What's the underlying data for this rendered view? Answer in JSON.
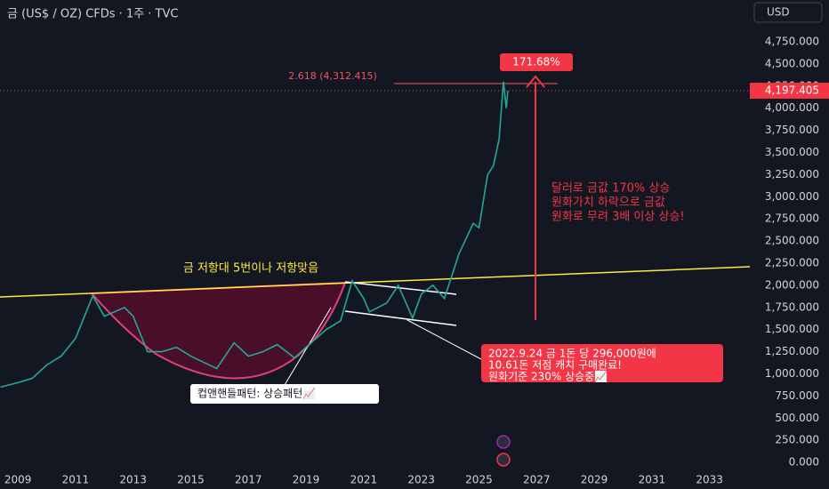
{
  "chart_data": {
    "type": "line",
    "title": "금 (US$ / OZ) CFDs · 1주 · TVC",
    "currency": "USD",
    "x": [
      2008.4,
      2009,
      2009.5,
      2010,
      2010.5,
      2011,
      2011.6,
      2012,
      2012.7,
      2013,
      2013.5,
      2014,
      2014.5,
      2015,
      2015.9,
      2016.5,
      2017,
      2017.5,
      2018,
      2018.6,
      2019,
      2019.7,
      2020.2,
      2020.6,
      2021,
      2021.2,
      2021.8,
      2022.2,
      2022.7,
      2023,
      2023.4,
      2023.8,
      2024,
      2024.3,
      2024.8,
      2025,
      2025.3,
      2025.5,
      2025.7,
      2025.85,
      2025.95,
      2026.0
    ],
    "values": [
      850,
      900,
      950,
      1100,
      1200,
      1400,
      1880,
      1650,
      1750,
      1650,
      1250,
      1250,
      1300,
      1200,
      1060,
      1350,
      1200,
      1250,
      1330,
      1180,
      1300,
      1500,
      1600,
      2050,
      1850,
      1700,
      1800,
      2000,
      1630,
      1900,
      2000,
      1850,
      2050,
      2350,
      2700,
      2650,
      3250,
      3350,
      3650,
      4300,
      4000,
      4197
    ],
    "color": "#26a69a",
    "xlim": [
      2008.38,
      2034.4
    ],
    "ylim": [
      -150,
      5222
    ],
    "xticks": [
      2009,
      2011,
      2013,
      2015,
      2017,
      2019,
      2021,
      2023,
      2025,
      2027,
      2029,
      2031,
      2033
    ],
    "yticks": [
      {
        "value": 0,
        "label": "0.000"
      },
      {
        "value": 250,
        "label": "250.000"
      },
      {
        "value": 500,
        "label": "500.000"
      },
      {
        "value": 750,
        "label": "750.000"
      },
      {
        "value": 1000,
        "label": "1,000.000"
      },
      {
        "value": 1250,
        "label": "1,250.000"
      },
      {
        "value": 1500,
        "label": "1,500.000"
      },
      {
        "value": 1750,
        "label": "1,750.000"
      },
      {
        "value": 2000,
        "label": "2,000.000"
      },
      {
        "value": 2250,
        "label": "2,250.000"
      },
      {
        "value": 2500,
        "label": "2,500.000"
      },
      {
        "value": 2750,
        "label": "2,750.000"
      },
      {
        "value": 3000,
        "label": "3,000.000"
      },
      {
        "value": 3250,
        "label": "3,250.000"
      },
      {
        "value": 3500,
        "label": "3,500.000"
      },
      {
        "value": 3750,
        "label": "3,750.000"
      },
      {
        "value": 4000,
        "label": "4,000.000"
      },
      {
        "value": 4250,
        "label": "4,250.000"
      },
      {
        "value": 4500,
        "label": "4,500.000"
      },
      {
        "value": 4750,
        "label": "4,750.000"
      }
    ],
    "grid": false,
    "last_price": {
      "value": 4197.405,
      "label": "4,197.405"
    },
    "fib_label": "2.618 (4,312.415)",
    "gain_label": "171.68%",
    "usd_note": [
      "달러로 금값 170% 상승",
      "원화가치 하락으로 금값",
      "원화로 무려 3배 이상 상승!"
    ],
    "resistance_note": "금 저항대 5번이나 저항맞음",
    "purchase_note": [
      "2022.9.24 금 1돈 당 296,000원에",
      "10.61돈 저점 캐치 구매완료!",
      "원화기준 230% 상승중📈"
    ],
    "pattern_label": "컵앤핸들패턴: 상승패턴📈"
  }
}
